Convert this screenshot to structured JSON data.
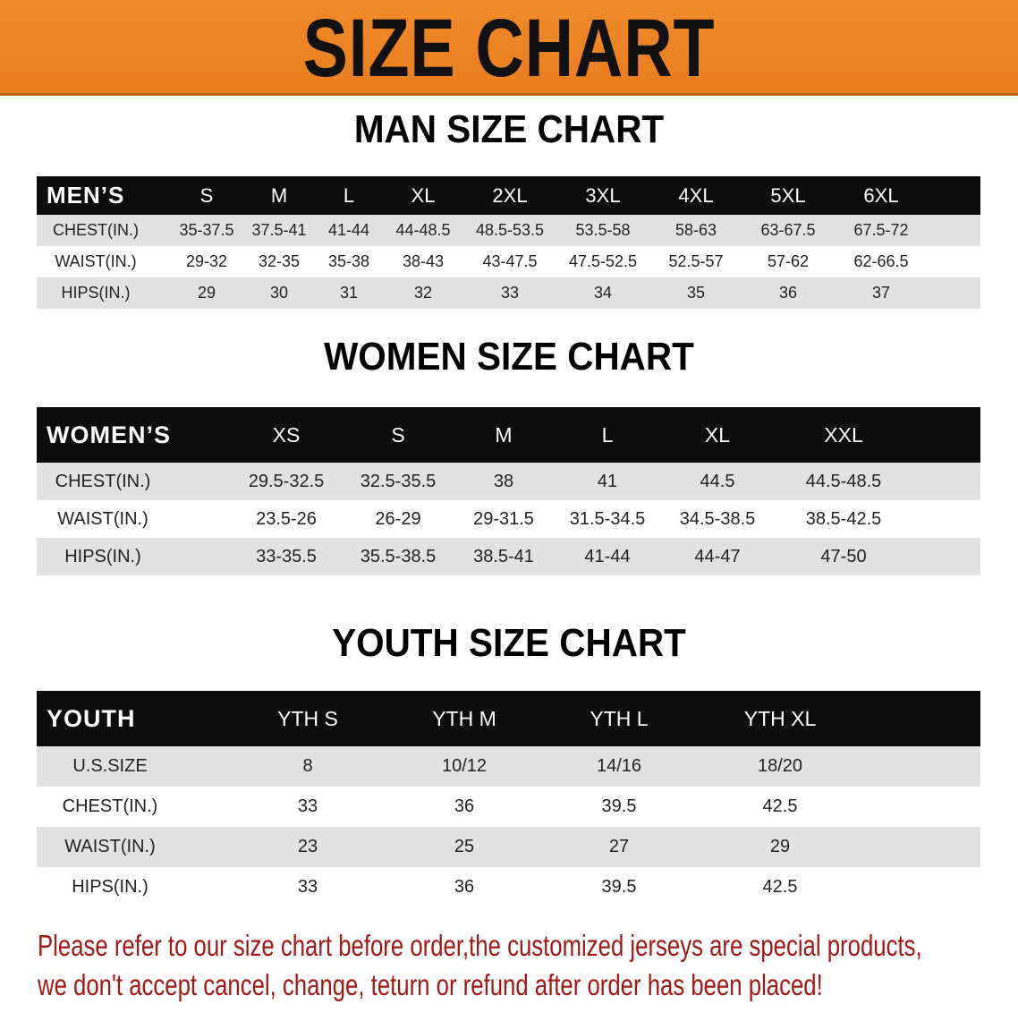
{
  "banner_title": "SIZE CHART",
  "men": {
    "title": "MAN SIZE CHART",
    "header_label": "MEN’S",
    "sizes": [
      "S",
      "M",
      "L",
      "XL",
      "2XL",
      "3XL",
      "4XL",
      "5XL",
      "6XL"
    ],
    "rows": [
      {
        "label": "CHEST(IN.)",
        "values": [
          "35-37.5",
          "37.5-41",
          "41-44",
          "44-48.5",
          "48.5-53.5",
          "53.5-58",
          "58-63",
          "63-67.5",
          "67.5-72"
        ]
      },
      {
        "label": "WAIST(IN.)",
        "values": [
          "29-32",
          "32-35",
          "35-38",
          "38-43",
          "43-47.5",
          "47.5-52.5",
          "52.5-57",
          "57-62",
          "62-66.5"
        ]
      },
      {
        "label": "HIPS(IN.)",
        "values": [
          "29",
          "30",
          "31",
          "32",
          "33",
          "34",
          "35",
          "36",
          "37"
        ]
      }
    ]
  },
  "women": {
    "title": "WOMEN SIZE CHART",
    "header_label": "WOMEN’S",
    "sizes": [
      "XS",
      "S",
      "M",
      "L",
      "XL",
      "XXL"
    ],
    "rows": [
      {
        "label": "CHEST(IN.)",
        "values": [
          "29.5-32.5",
          "32.5-35.5",
          "38",
          "41",
          "44.5",
          "44.5-48.5"
        ]
      },
      {
        "label": "WAIST(IN.)",
        "values": [
          "23.5-26",
          "26-29",
          "29-31.5",
          "31.5-34.5",
          "34.5-38.5",
          "38.5-42.5"
        ]
      },
      {
        "label": "HIPS(IN.)",
        "values": [
          "33-35.5",
          "35.5-38.5",
          "38.5-41",
          "41-44",
          "44-47",
          "47-50"
        ]
      }
    ]
  },
  "youth": {
    "title": "YOUTH SIZE CHART",
    "header_label": "YOUTH",
    "sizes": [
      "YTH S",
      "YTH M",
      "YTH L",
      "YTH XL"
    ],
    "rows": [
      {
        "label": "U.S.SIZE",
        "values": [
          "8",
          "10/12",
          "14/16",
          "18/20"
        ]
      },
      {
        "label": "CHEST(IN.)",
        "values": [
          "33",
          "36",
          "39.5",
          "42.5"
        ]
      },
      {
        "label": "WAIST(IN.)",
        "values": [
          "23",
          "25",
          "27",
          "29"
        ]
      },
      {
        "label": "HIPS(IN.)",
        "values": [
          "33",
          "36",
          "39.5",
          "42.5"
        ]
      }
    ]
  },
  "footer": {
    "line1": "Please refer to our size chart before order,the customized jerseys are special products,",
    "line2": "we don't accept cancel, change, teturn or refund after order has been placed!"
  },
  "colors": {
    "banner": "#ec8321",
    "header_row": "#0c0c0c",
    "stripe": "#e2e2e2",
    "notice": "#a01818"
  }
}
